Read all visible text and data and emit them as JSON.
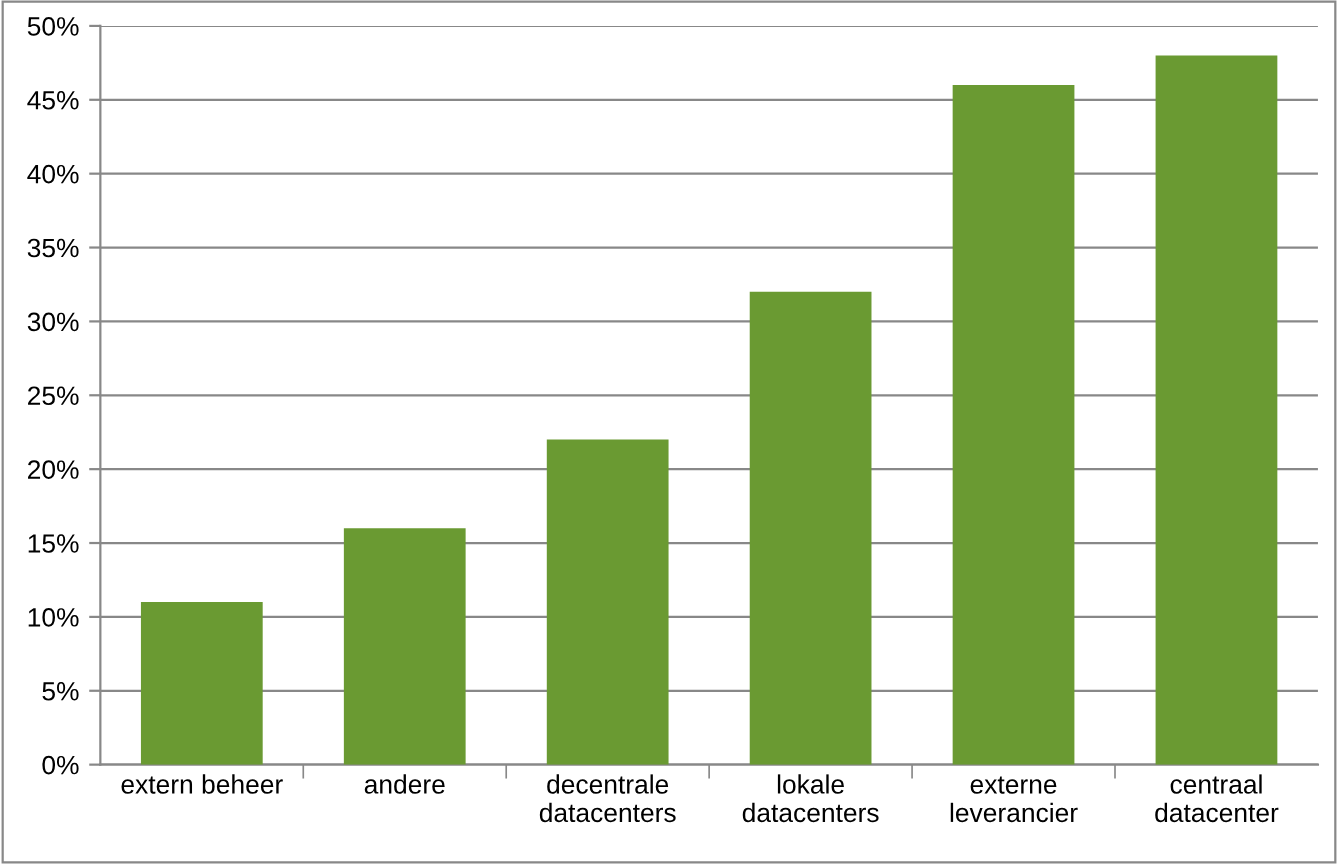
{
  "chart_data": {
    "type": "bar",
    "categories": [
      "extern beheer",
      "andere",
      "decentrale\ndatacenters",
      "lokale\ndatacenters",
      "externe\nleverancier",
      "centraal\ndatacenter"
    ],
    "values": [
      11,
      16,
      22,
      32,
      46,
      48
    ],
    "color": "#6a9a32",
    "ylim": [
      0,
      50
    ],
    "yticks": [
      {
        "value": 0,
        "label": "0%"
      },
      {
        "value": 5,
        "label": "5%"
      },
      {
        "value": 10,
        "label": "10%"
      },
      {
        "value": 15,
        "label": "15%"
      },
      {
        "value": 20,
        "label": "20%"
      },
      {
        "value": 25,
        "label": "25%"
      },
      {
        "value": 30,
        "label": "30%"
      },
      {
        "value": 35,
        "label": "35%"
      },
      {
        "value": 40,
        "label": "40%"
      },
      {
        "value": 45,
        "label": "45%"
      },
      {
        "value": 50,
        "label": "50%"
      }
    ],
    "grid": "y",
    "legend": false
  }
}
